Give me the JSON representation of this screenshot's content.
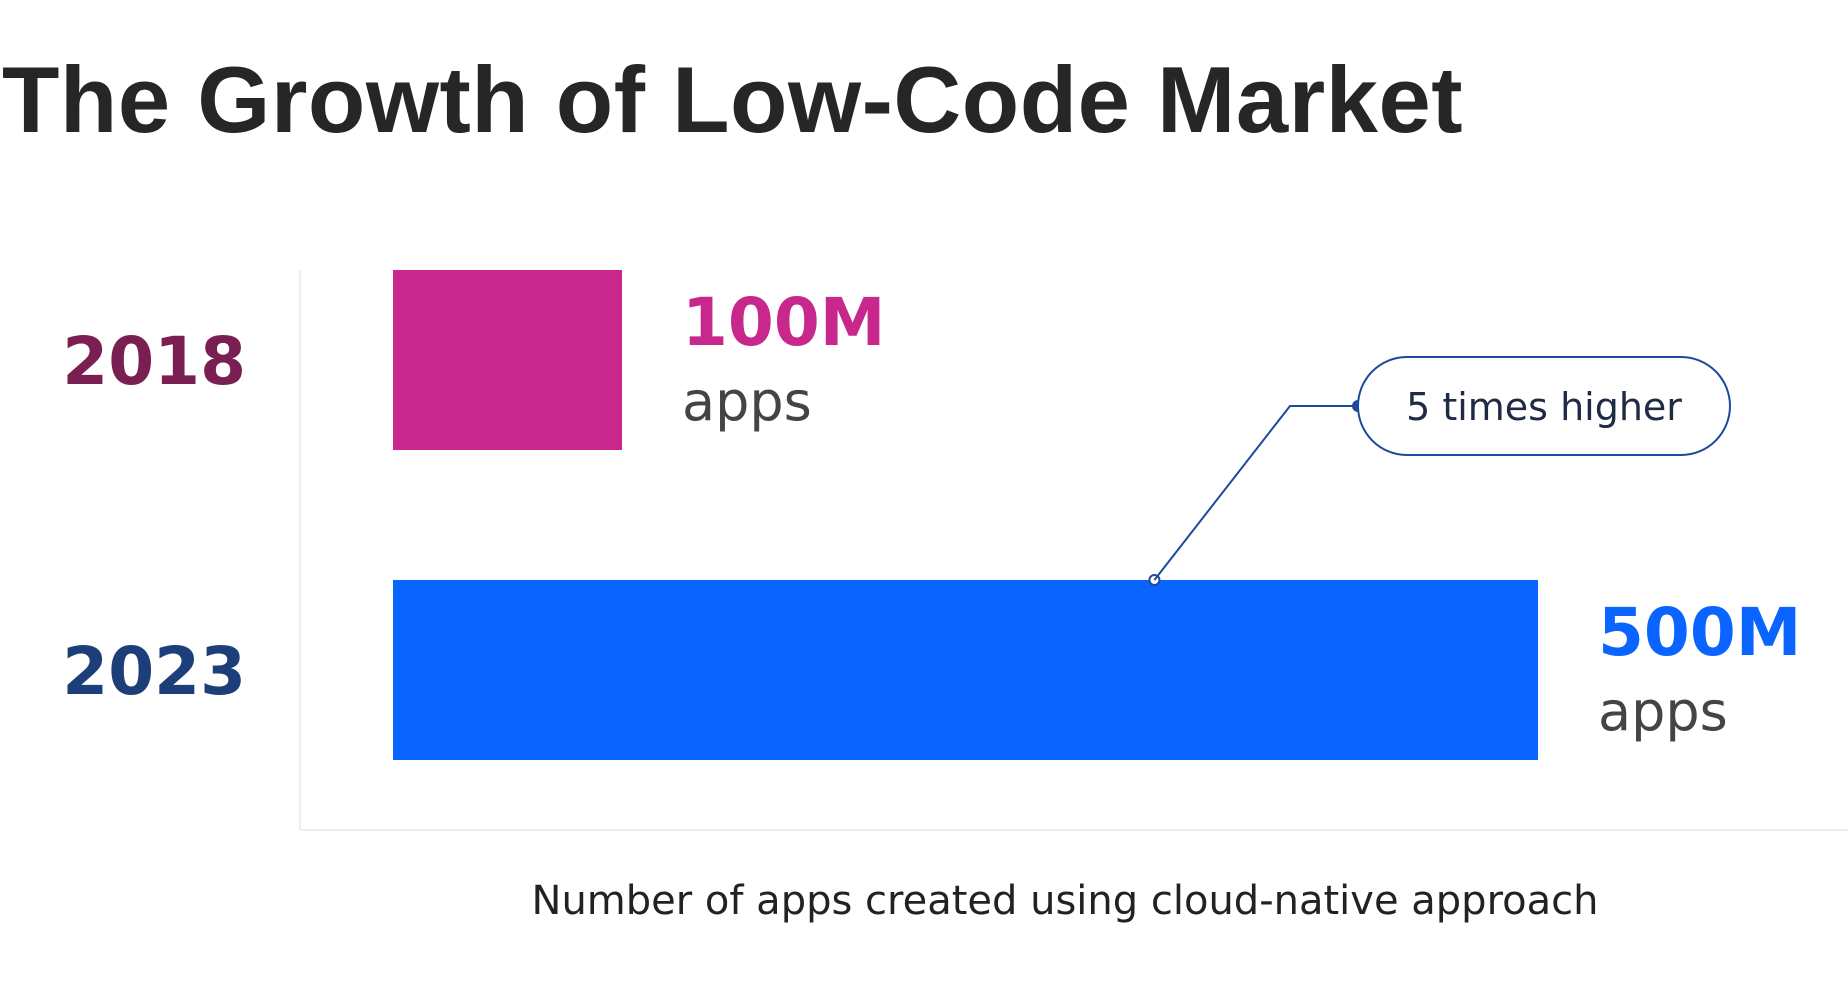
{
  "chart_data": {
    "type": "bar",
    "orientation": "horizontal",
    "title": "The Growth of Low-Code Market",
    "categories": [
      "2018",
      "2023"
    ],
    "values": [
      100,
      500
    ],
    "value_labels": [
      "100M",
      "500M"
    ],
    "unit_label": "apps",
    "xlabel": "Number of apps created using cloud-native approach",
    "ylabel": "",
    "xlim": [
      0,
      500
    ],
    "grid": false,
    "legend": "none",
    "annotation": "5 times higher",
    "colors": {
      "bars": [
        "#c8288c",
        "#0a64ff"
      ],
      "year_labels": [
        "#7a1f52",
        "#1c3f7a"
      ],
      "value_labels": [
        "#c8288c",
        "#0a64ff"
      ],
      "callout": "#1c4a9c"
    }
  }
}
